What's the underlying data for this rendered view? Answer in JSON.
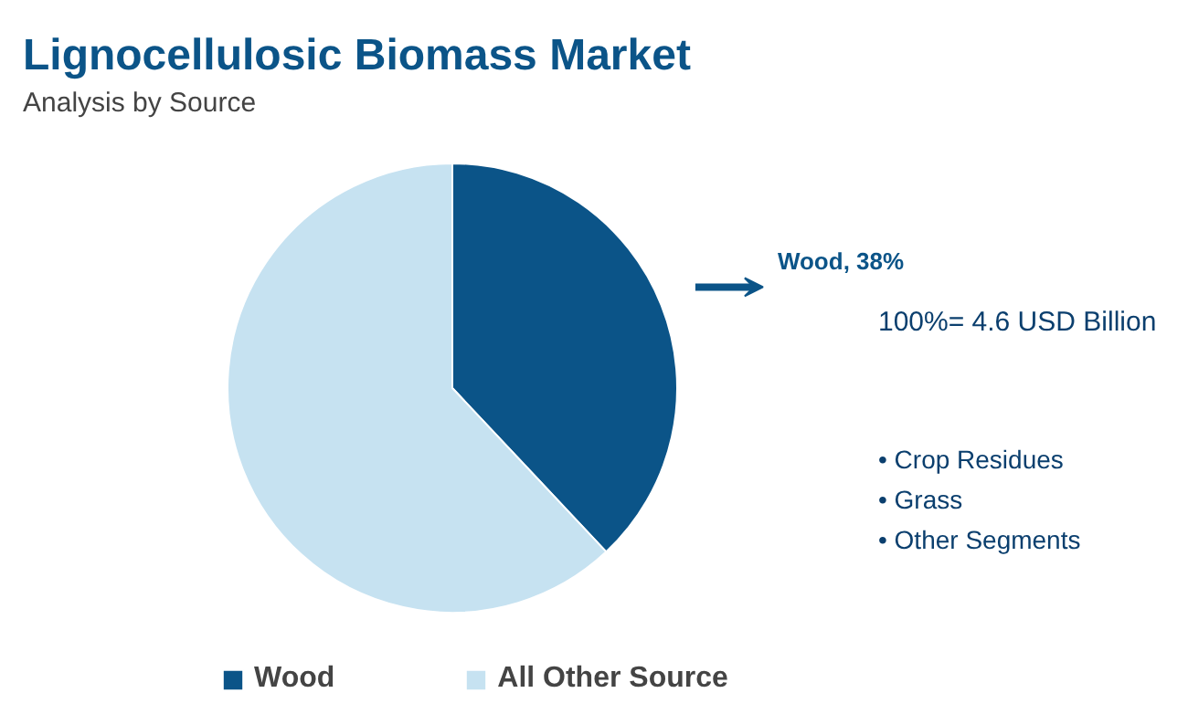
{
  "chart_data": {
    "type": "pie",
    "title": "Lignocellulosic Biomass Market",
    "subtitle": "Analysis by Source",
    "categories": [
      "Wood",
      "All Other Source"
    ],
    "values": [
      38,
      62
    ],
    "colors": [
      "#0b5488",
      "#c6e2f1"
    ],
    "value_labels": [
      "Wood, 38%",
      null
    ],
    "legend": "bottom",
    "annotations": [
      "100%= 4.6 USD Billion",
      "• Crop Residues",
      "• Grass",
      "• Other Segments"
    ]
  }
}
